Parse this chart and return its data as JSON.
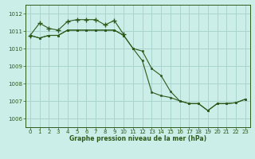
{
  "title": "Graphe pression niveau de la mer (hPa)",
  "background_color": "#cceee8",
  "grid_color": "#aad4ce",
  "line_color": "#2d5a1b",
  "xlim": [
    -0.5,
    23.5
  ],
  "ylim": [
    1005.5,
    1012.5
  ],
  "yticks": [
    1006,
    1007,
    1008,
    1009,
    1010,
    1011,
    1012
  ],
  "xticks": [
    0,
    1,
    2,
    3,
    4,
    5,
    6,
    7,
    8,
    9,
    10,
    11,
    12,
    13,
    14,
    15,
    16,
    17,
    18,
    19,
    20,
    21,
    22,
    23
  ],
  "series1_x": [
    0,
    1,
    2,
    3,
    4,
    5,
    6,
    7,
    8,
    9,
    10,
    11,
    12,
    13,
    14,
    15,
    16,
    17,
    18,
    19,
    20,
    21,
    22,
    23
  ],
  "series1_y": [
    1010.75,
    1010.6,
    1010.75,
    1010.75,
    1011.05,
    1011.05,
    1011.05,
    1011.05,
    1011.05,
    1011.05,
    1010.75,
    1010.0,
    1009.3,
    1007.5,
    1007.3,
    1007.2,
    1007.0,
    1006.85,
    1006.85,
    1006.45,
    1006.85,
    1006.85,
    1006.9,
    1007.1
  ],
  "series2_x": [
    0,
    1,
    2,
    3,
    4,
    5,
    6,
    7,
    8,
    9,
    10,
    11,
    12,
    13,
    14,
    15,
    16,
    17,
    18,
    19,
    20,
    21,
    22,
    23
  ],
  "series2_y": [
    1010.75,
    1010.6,
    1010.75,
    1010.75,
    1011.05,
    1011.05,
    1011.05,
    1011.05,
    1011.05,
    1011.05,
    1010.75,
    1010.0,
    1009.85,
    1008.85,
    1008.45,
    1007.55,
    1007.0,
    1006.85,
    1006.85,
    1006.45,
    1006.85,
    1006.85,
    1006.9,
    1007.1
  ],
  "series3_x": [
    0,
    1,
    2,
    3,
    4,
    5,
    6,
    7,
    8,
    9,
    10
  ],
  "series3_y": [
    1010.75,
    1011.45,
    1011.15,
    1011.05,
    1011.55,
    1011.65,
    1011.65,
    1011.65,
    1011.35,
    1011.6,
    1010.8
  ]
}
